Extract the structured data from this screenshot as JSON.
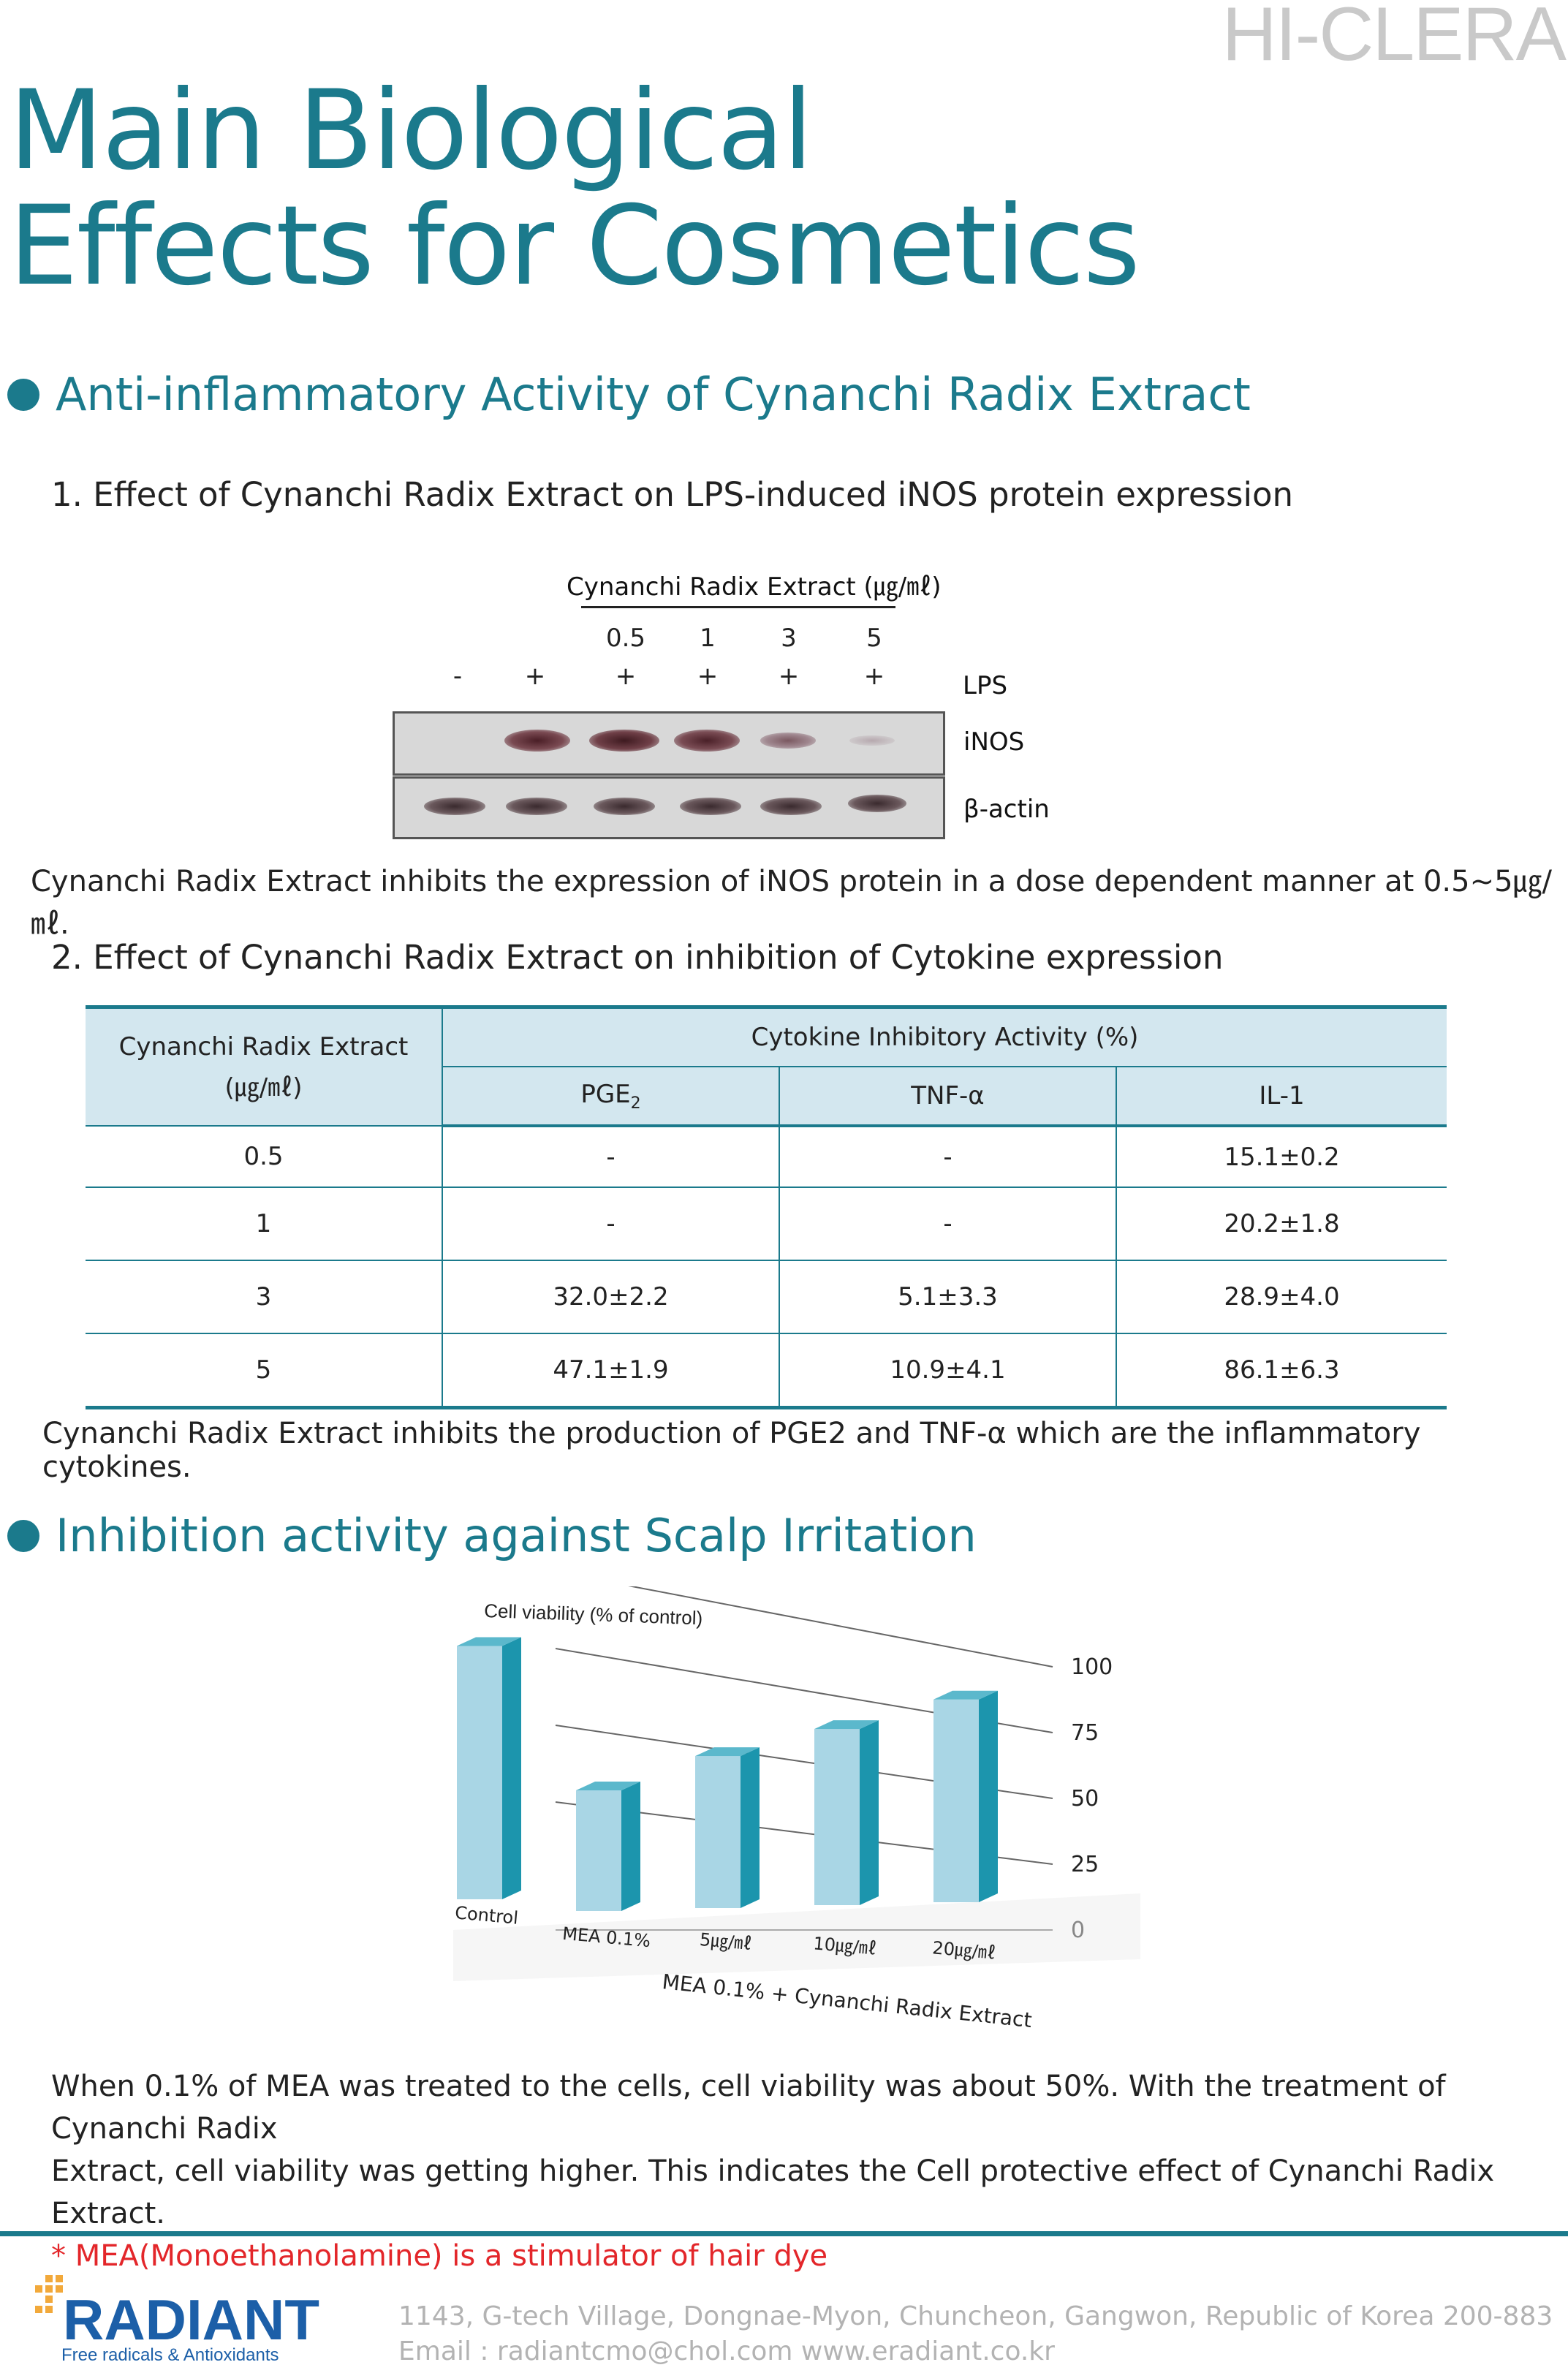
{
  "brand": "HI-CLERA",
  "title": {
    "line1": "Main Biological",
    "line2": "Effects for Cosmetics"
  },
  "section1": {
    "heading": "Anti-inflammatory Activity of Cynanchi Radix Extract",
    "sub1": {
      "heading": "1. Effect of Cynanchi Radix Extract on LPS-induced iNOS protein expression",
      "blot": {
        "extract_label": "Cynanchi Radix Extract (㎍/㎖)",
        "concentrations": [
          "0.5",
          "1",
          "3",
          "5"
        ],
        "lps_signs": [
          "-",
          "+",
          "+",
          "+",
          "+",
          "+"
        ],
        "row_labels": {
          "lps": "LPS",
          "inos": "iNOS",
          "actin": "β-actin"
        }
      },
      "caption": "Cynanchi Radix Extract inhibits the expression of iNOS protein in a dose dependent manner at 0.5~5㎍/㎖."
    },
    "sub2": {
      "heading": "2. Effect of Cynanchi Radix Extract on inhibition of Cytokine expression",
      "table": {
        "col0_header_line1": "Cynanchi Radix Extract",
        "col0_header_line2": "(㎍/㎖)",
        "group_header": "Cytokine Inhibitory Activity (%)",
        "col_pge": "PGE",
        "col_pge_sub": "2",
        "col_tnf": "TNF-α",
        "col_il": "IL-1",
        "rows": [
          {
            "conc": "0.5",
            "pge": "-",
            "tnf": "-",
            "il": "15.1±0.2"
          },
          {
            "conc": "1",
            "pge": "-",
            "tnf": "-",
            "il": "20.2±1.8"
          },
          {
            "conc": "3",
            "pge": "32.0±2.2",
            "tnf": "5.1±3.3",
            "il": "28.9±4.0"
          },
          {
            "conc": "5",
            "pge": "47.1±1.9",
            "tnf": "10.9±4.1",
            "il": "86.1±6.3"
          }
        ]
      },
      "caption": "Cynanchi Radix Extract inhibits the production of PGE2 and TNF-α which are the inflammatory cytokines."
    }
  },
  "section2": {
    "heading": "Inhibition activity against Scalp Irritation",
    "paragraph_line1": "When 0.1% of MEA was treated to the cells, cell viability was about 50%. With the treatment of Cynanchi Radix",
    "paragraph_line2": "Extract, cell viability was getting higher. This indicates the Cell protective effect of Cynanchi Radix Extract.",
    "note": "* MEA(Monoethanolamine) is a stimulator of hair dye"
  },
  "chart_data": {
    "type": "bar",
    "ylabel": "Cell viability (% of control)",
    "categories": [
      "Control",
      "MEA 0.1%",
      "5㎍/㎖",
      "10㎍/㎖",
      "20㎍/㎖"
    ],
    "group_label": "MEA 0.1% + Cynanchi Radix Extract",
    "values": [
      100,
      50,
      63,
      73,
      84
    ],
    "yticks": [
      "0",
      "25",
      "50",
      "75",
      "100"
    ],
    "ylim": [
      0,
      100
    ],
    "grid": true,
    "bar_front": "#a9d6e5",
    "bar_side": "#1c95ad"
  },
  "footer": {
    "logo_text": "RADIANT",
    "logo_tagline": "Free radicals & Antioxidants",
    "address": "1143, G-tech Village, Dongnae-Myon, Chuncheon, Gangwon, Republic of Korea 200-883",
    "contact": "Email : radiantcmo@chol.com   www.eradiant.co.kr"
  }
}
